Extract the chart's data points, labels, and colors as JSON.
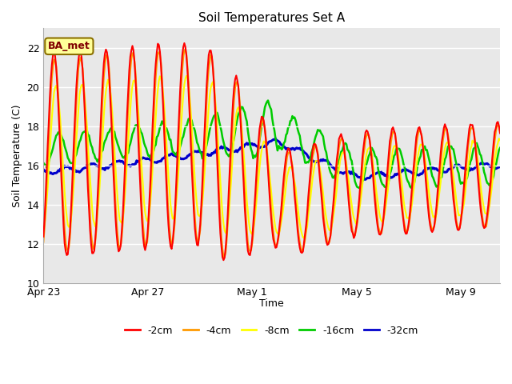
{
  "title": "Soil Temperatures Set A",
  "xlabel": "Time",
  "ylabel": "Soil Temperature (C)",
  "ylim": [
    10,
    23
  ],
  "yticks": [
    10,
    12,
    14,
    16,
    18,
    20,
    22
  ],
  "plot_bg_color": "#e8e8e8",
  "annotation_text": "BA_met",
  "legend_labels": [
    "-2cm",
    "-4cm",
    "-8cm",
    "-16cm",
    "-32cm"
  ],
  "line_colors": [
    "#ff0000",
    "#ff9900",
    "#ffff00",
    "#00cc00",
    "#0000cc"
  ],
  "line_widths": [
    1.5,
    1.5,
    1.5,
    1.8,
    2.2
  ],
  "xtick_labels": [
    "Apr 23",
    "Apr 27",
    "May 1",
    "May 5",
    "May 9"
  ],
  "xtick_positions": [
    0,
    4,
    8,
    12,
    16
  ]
}
